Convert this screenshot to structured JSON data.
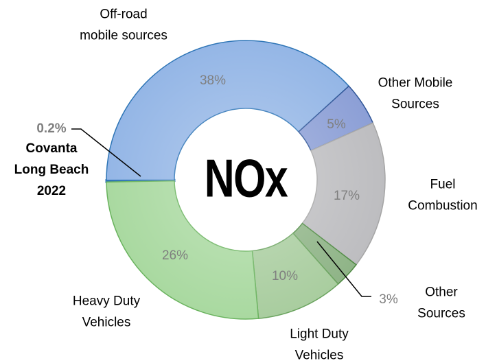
{
  "chart_data": {
    "type": "donut",
    "center_label": "NOx",
    "categories": [
      "Covanta\nLong Beach\n2022",
      "Off-road\nmobile sources",
      "Other Mobile\nSources",
      "Fuel\nCombustion",
      "Other\nSources",
      "Light Duty\nVehicles",
      "Heavy Duty\nVehicles"
    ],
    "values": [
      0.2,
      38,
      5,
      17,
      3,
      10,
      26
    ],
    "value_labels": [
      "0.2%",
      "38%",
      "5%",
      "17%",
      "3%",
      "10%",
      "26%"
    ],
    "colors": [
      "#2e75b6",
      "#94b6e6",
      "#8c9fd6",
      "#bdbdc0",
      "#8fb487",
      "#a9cd9f",
      "#a9d9a0"
    ]
  }
}
